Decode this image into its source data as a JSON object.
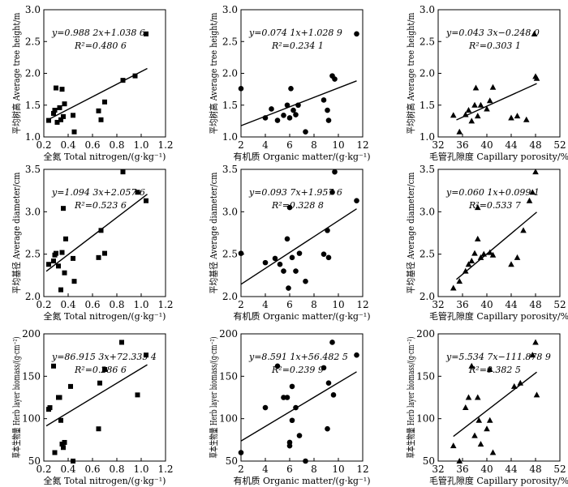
{
  "chart_data": [
    {
      "type": "scatter",
      "marker": "square",
      "row": 0,
      "col": 0,
      "xlabel": "全氮 Total nitrogen/(g·kg⁻¹)",
      "ylabel": "平均树高 Average tree height/m",
      "xlim": [
        0.2,
        1.2
      ],
      "ylim": [
        1.0,
        3.0
      ],
      "xticks": [
        "0.2",
        "0.4",
        "0.6",
        "0.8",
        "1.0",
        "1.2"
      ],
      "yticks": [
        "1.0",
        "1.5",
        "2.0",
        "2.5",
        "3.0"
      ],
      "equation": "y=0.988 2x+1.038 6",
      "r2": "R²=0.480 6",
      "fit": [
        [
          0.22,
          1.256
        ],
        [
          1.05,
          2.0762
        ]
      ],
      "points": [
        [
          0.24,
          1.26
        ],
        [
          0.28,
          1.37
        ],
        [
          0.29,
          1.42
        ],
        [
          0.3,
          1.77
        ],
        [
          0.31,
          1.23
        ],
        [
          0.33,
          1.46
        ],
        [
          0.34,
          1.27
        ],
        [
          0.35,
          1.75
        ],
        [
          0.36,
          1.32
        ],
        [
          0.37,
          1.52
        ],
        [
          0.44,
          1.34
        ],
        [
          0.45,
          1.08
        ],
        [
          0.65,
          1.41
        ],
        [
          0.67,
          1.27
        ],
        [
          0.7,
          1.55
        ],
        [
          0.85,
          1.89
        ],
        [
          0.95,
          1.96
        ],
        [
          1.04,
          2.62
        ]
      ]
    },
    {
      "type": "scatter",
      "marker": "circle",
      "row": 0,
      "col": 1,
      "xlabel": "有机质 Organic matter/(g·kg⁻¹)",
      "ylabel": "平均树高 Average tree height/m",
      "xlim": [
        2,
        12
      ],
      "ylim": [
        1.0,
        3.0
      ],
      "xticks": [
        "2",
        "4",
        "6",
        "8",
        "10",
        "12"
      ],
      "yticks": [
        "1.0",
        "1.5",
        "2.0",
        "2.5",
        "3.0"
      ],
      "equation": "y=0.074 1x+1.028 9",
      "r2": "R²=0.234 1",
      "fit": [
        [
          2.0,
          1.1771
        ],
        [
          11.5,
          1.8811
        ]
      ],
      "points": [
        [
          2.0,
          1.76
        ],
        [
          4.0,
          1.3
        ],
        [
          4.5,
          1.44
        ],
        [
          5.0,
          1.26
        ],
        [
          5.5,
          1.34
        ],
        [
          5.8,
          1.5
        ],
        [
          6.0,
          1.3
        ],
        [
          6.1,
          1.76
        ],
        [
          6.3,
          1.42
        ],
        [
          6.5,
          1.35
        ],
        [
          6.7,
          1.5
        ],
        [
          7.3,
          1.08
        ],
        [
          8.8,
          1.58
        ],
        [
          9.1,
          1.42
        ],
        [
          9.2,
          1.26
        ],
        [
          9.5,
          1.96
        ],
        [
          9.7,
          1.91
        ],
        [
          11.5,
          2.62
        ]
      ]
    },
    {
      "type": "scatter",
      "marker": "triangle",
      "row": 0,
      "col": 2,
      "xlabel": "毛管孔隙度 Capillary porosity/%",
      "ylabel": "平均树高 Average tree height/m",
      "xlim": [
        32,
        52
      ],
      "ylim": [
        1.0,
        3.0
      ],
      "xticks": [
        "32",
        "36",
        "40",
        "44",
        "48",
        "52"
      ],
      "yticks": [
        "1.0",
        "1.5",
        "2.0",
        "2.5",
        "3.0"
      ],
      "equation": "y=0.043 3x−0.248 0",
      "r2": "R²=0.303 1",
      "fit": [
        [
          35.0,
          1.2675
        ],
        [
          48.2,
          1.8391
        ]
      ],
      "points": [
        [
          34.5,
          1.34
        ],
        [
          35.5,
          1.08
        ],
        [
          36.5,
          1.35
        ],
        [
          37.0,
          1.42
        ],
        [
          37.5,
          1.25
        ],
        [
          38.0,
          1.5
        ],
        [
          38.2,
          1.77
        ],
        [
          38.5,
          1.33
        ],
        [
          39.0,
          1.5
        ],
        [
          40.0,
          1.44
        ],
        [
          40.5,
          1.57
        ],
        [
          41.0,
          1.78
        ],
        [
          44.0,
          1.3
        ],
        [
          45.0,
          1.33
        ],
        [
          46.5,
          1.27
        ],
        [
          47.8,
          2.62
        ],
        [
          48.0,
          1.95
        ],
        [
          48.2,
          1.92
        ]
      ]
    },
    {
      "type": "scatter",
      "marker": "square",
      "row": 1,
      "col": 0,
      "xlabel": "全氮 Total nitrogen/(g·kg⁻¹)",
      "ylabel": "平均基径 Average diameter/cm",
      "xlim": [
        0.2,
        1.2
      ],
      "ylim": [
        2.0,
        3.5
      ],
      "xticks": [
        "0.2",
        "0.4",
        "0.6",
        "0.8",
        "1.0",
        "1.2"
      ],
      "yticks": [
        "2.0",
        "2.5",
        "3.0",
        "3.5"
      ],
      "equation": "y=1.094 3x+2.057 6",
      "r2": "R²=0.523 6",
      "fit": [
        [
          0.22,
          2.2983
        ],
        [
          1.05,
          3.2066
        ]
      ],
      "points": [
        [
          0.24,
          2.38
        ],
        [
          0.28,
          2.42
        ],
        [
          0.29,
          2.49
        ],
        [
          0.3,
          2.51
        ],
        [
          0.32,
          2.36
        ],
        [
          0.34,
          2.08
        ],
        [
          0.35,
          2.52
        ],
        [
          0.36,
          3.04
        ],
        [
          0.37,
          2.28
        ],
        [
          0.38,
          2.68
        ],
        [
          0.44,
          2.45
        ],
        [
          0.45,
          2.18
        ],
        [
          0.65,
          2.46
        ],
        [
          0.67,
          2.78
        ],
        [
          0.7,
          2.51
        ],
        [
          0.85,
          3.47
        ],
        [
          0.97,
          3.23
        ],
        [
          1.04,
          3.13
        ]
      ]
    },
    {
      "type": "scatter",
      "marker": "circle",
      "row": 1,
      "col": 1,
      "xlabel": "有机质 Organic matter/(g·kg⁻¹)",
      "ylabel": "平均基径 Average diameter/cm",
      "xlim": [
        2,
        12
      ],
      "ylim": [
        2.0,
        3.5
      ],
      "xticks": [
        "2",
        "4",
        "6",
        "8",
        "10",
        "12"
      ],
      "yticks": [
        "2.0",
        "2.5",
        "3.0",
        "3.5"
      ],
      "equation": "y=0.093 7x+1.957 6",
      "r2": "R²=0.328 8",
      "fit": [
        [
          2.0,
          2.145
        ],
        [
          11.5,
          3.0352
        ]
      ],
      "points": [
        [
          2.0,
          2.51
        ],
        [
          4.0,
          2.4
        ],
        [
          4.8,
          2.45
        ],
        [
          5.2,
          2.38
        ],
        [
          5.5,
          2.3
        ],
        [
          5.8,
          2.68
        ],
        [
          5.9,
          2.1
        ],
        [
          6.0,
          3.05
        ],
        [
          6.2,
          2.46
        ],
        [
          6.5,
          2.3
        ],
        [
          6.8,
          2.51
        ],
        [
          7.3,
          2.18
        ],
        [
          8.8,
          2.5
        ],
        [
          9.1,
          2.78
        ],
        [
          9.2,
          2.46
        ],
        [
          9.5,
          3.23
        ],
        [
          9.7,
          3.47
        ],
        [
          11.5,
          3.13
        ]
      ]
    },
    {
      "type": "scatter",
      "marker": "triangle",
      "row": 1,
      "col": 2,
      "xlabel": "毛管孔隙度 Capillary porosity/%",
      "ylabel": "平均基径 Average diameter/cm",
      "xlim": [
        32,
        52
      ],
      "ylim": [
        2.0,
        3.5
      ],
      "xticks": [
        "32",
        "36",
        "40",
        "44",
        "48",
        "52"
      ],
      "yticks": [
        "2.0",
        "2.5",
        "3.0",
        "3.5"
      ],
      "equation": "y=0.060 1x+0.099 1",
      "r2": "R²=0.533 7",
      "fit": [
        [
          35.0,
          2.2026
        ],
        [
          48.2,
          2.9959
        ]
      ],
      "points": [
        [
          34.5,
          2.1
        ],
        [
          35.5,
          2.18
        ],
        [
          36.5,
          2.3
        ],
        [
          37.0,
          2.38
        ],
        [
          37.5,
          2.42
        ],
        [
          38.0,
          2.51
        ],
        [
          38.5,
          2.68
        ],
        [
          39.0,
          2.46
        ],
        [
          39.5,
          2.5
        ],
        [
          40.5,
          2.52
        ],
        [
          41.0,
          2.49
        ],
        [
          44.0,
          2.38
        ],
        [
          45.0,
          2.46
        ],
        [
          46.0,
          2.78
        ],
        [
          47.0,
          3.13
        ],
        [
          47.5,
          3.23
        ],
        [
          48.0,
          3.47
        ],
        [
          38.5,
          3.05
        ]
      ]
    },
    {
      "type": "scatter",
      "marker": "square",
      "row": 2,
      "col": 0,
      "xlabel": "全氮 Total nitrogen/(g·kg⁻¹)",
      "ylabel": "草本生物量 Herb layer biomass/(g·cm⁻²)",
      "xlim": [
        0.2,
        1.2
      ],
      "ylim": [
        50,
        200
      ],
      "xticks": [
        "0.2",
        "0.4",
        "0.6",
        "0.8",
        "1.0",
        "1.2"
      ],
      "yticks": [
        "50",
        "100",
        "150",
        "200"
      ],
      "equation": "y=86.915 3x+72.335 4",
      "r2": "R²=0.286 6",
      "fit": [
        [
          0.22,
          91.457
        ],
        [
          1.05,
          163.596
        ]
      ],
      "points": [
        [
          0.24,
          111
        ],
        [
          0.25,
          113
        ],
        [
          0.28,
          162
        ],
        [
          0.29,
          60
        ],
        [
          0.32,
          125
        ],
        [
          0.33,
          125
        ],
        [
          0.34,
          98
        ],
        [
          0.35,
          70
        ],
        [
          0.36,
          66
        ],
        [
          0.37,
          72
        ],
        [
          0.42,
          138
        ],
        [
          0.44,
          50
        ],
        [
          0.65,
          88
        ],
        [
          0.66,
          142
        ],
        [
          0.7,
          158
        ],
        [
          0.84,
          190
        ],
        [
          0.97,
          128
        ],
        [
          1.04,
          175
        ]
      ]
    },
    {
      "type": "scatter",
      "marker": "circle",
      "row": 2,
      "col": 1,
      "xlabel": "有机质 Organic matter/(g·kg⁻¹)",
      "ylabel": "草本生物量 Herb layer biomass/(g·cm⁻²)",
      "xlim": [
        2,
        12
      ],
      "ylim": [
        50,
        200
      ],
      "xticks": [
        "2",
        "4",
        "6",
        "8",
        "10",
        "12"
      ],
      "yticks": [
        "50",
        "100",
        "150",
        "200"
      ],
      "equation": "y=8.591 1x+56.482 5",
      "r2": "R²=0.239 9",
      "fit": [
        [
          2.0,
          73.665
        ],
        [
          11.5,
          155.28
        ]
      ],
      "points": [
        [
          2.0,
          60
        ],
        [
          4.0,
          113
        ],
        [
          5.0,
          162
        ],
        [
          5.5,
          125
        ],
        [
          5.8,
          125
        ],
        [
          6.0,
          72
        ],
        [
          6.0,
          68
        ],
        [
          6.2,
          98
        ],
        [
          6.2,
          138
        ],
        [
          6.5,
          113
        ],
        [
          6.8,
          80
        ],
        [
          7.3,
          50
        ],
        [
          8.8,
          160
        ],
        [
          9.1,
          88
        ],
        [
          9.2,
          142
        ],
        [
          9.5,
          190
        ],
        [
          9.6,
          128
        ],
        [
          11.5,
          175
        ]
      ]
    },
    {
      "type": "scatter",
      "marker": "triangle",
      "row": 2,
      "col": 2,
      "xlabel": "毛管孔隙度 Capillary porosity/%",
      "ylabel": "草本生物量 Herb layer biomass/(g·cm⁻²)",
      "xlim": [
        32,
        52
      ],
      "ylim": [
        50,
        200
      ],
      "xticks": [
        "32",
        "36",
        "40",
        "44",
        "48",
        "52"
      ],
      "yticks": [
        "50",
        "100",
        "150",
        "200"
      ],
      "equation": "y=5.534 7x−111.878 9",
      "r2": "R²=0.382 5",
      "fit": [
        [
          34.5,
          79.068
        ],
        [
          48.2,
          154.893
        ]
      ],
      "points": [
        [
          34.5,
          68
        ],
        [
          35.5,
          50
        ],
        [
          36.5,
          113
        ],
        [
          37.0,
          125
        ],
        [
          37.5,
          162
        ],
        [
          38.0,
          80
        ],
        [
          38.5,
          125
        ],
        [
          38.7,
          98
        ],
        [
          39.0,
          70
        ],
        [
          40.0,
          88
        ],
        [
          40.5,
          98
        ],
        [
          41.0,
          60
        ],
        [
          40.5,
          158
        ],
        [
          44.5,
          138
        ],
        [
          45.5,
          142
        ],
        [
          47.5,
          175
        ],
        [
          48.0,
          190
        ],
        [
          48.2,
          128
        ]
      ]
    }
  ]
}
